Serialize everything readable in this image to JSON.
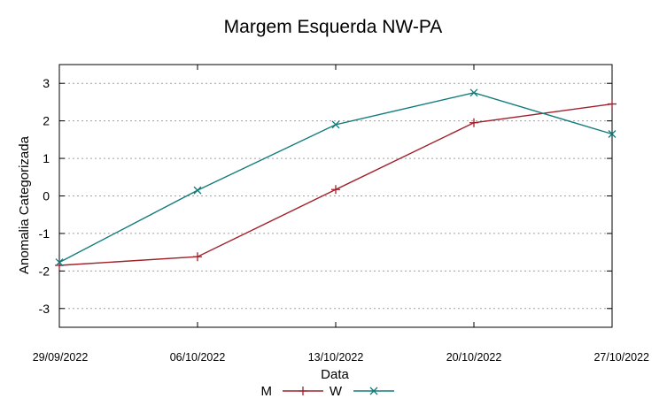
{
  "chart_data": {
    "type": "line",
    "title": "Margem Esquerda NW-PA",
    "xlabel": "Data",
    "ylabel": "Anomalia Categorizada",
    "x": [
      "29/09/2022",
      "06/10/2022",
      "13/10/2022",
      "20/10/2022",
      "27/10/2022"
    ],
    "yticks": [
      "3",
      "2",
      "1",
      "0",
      "-1",
      "-2",
      "-3"
    ],
    "ylim": [
      -3.5,
      3.5
    ],
    "grid": "horizontal-dashed",
    "legend": "bottom-center",
    "series": [
      {
        "name": "M",
        "color": "#a0202a",
        "marker": "plus",
        "values": [
          -1.85,
          -1.62,
          0.17,
          1.95,
          2.45
        ]
      },
      {
        "name": "W",
        "color": "#117b7b",
        "marker": "cross",
        "values": [
          -1.77,
          0.15,
          1.9,
          2.75,
          1.65
        ]
      }
    ]
  }
}
